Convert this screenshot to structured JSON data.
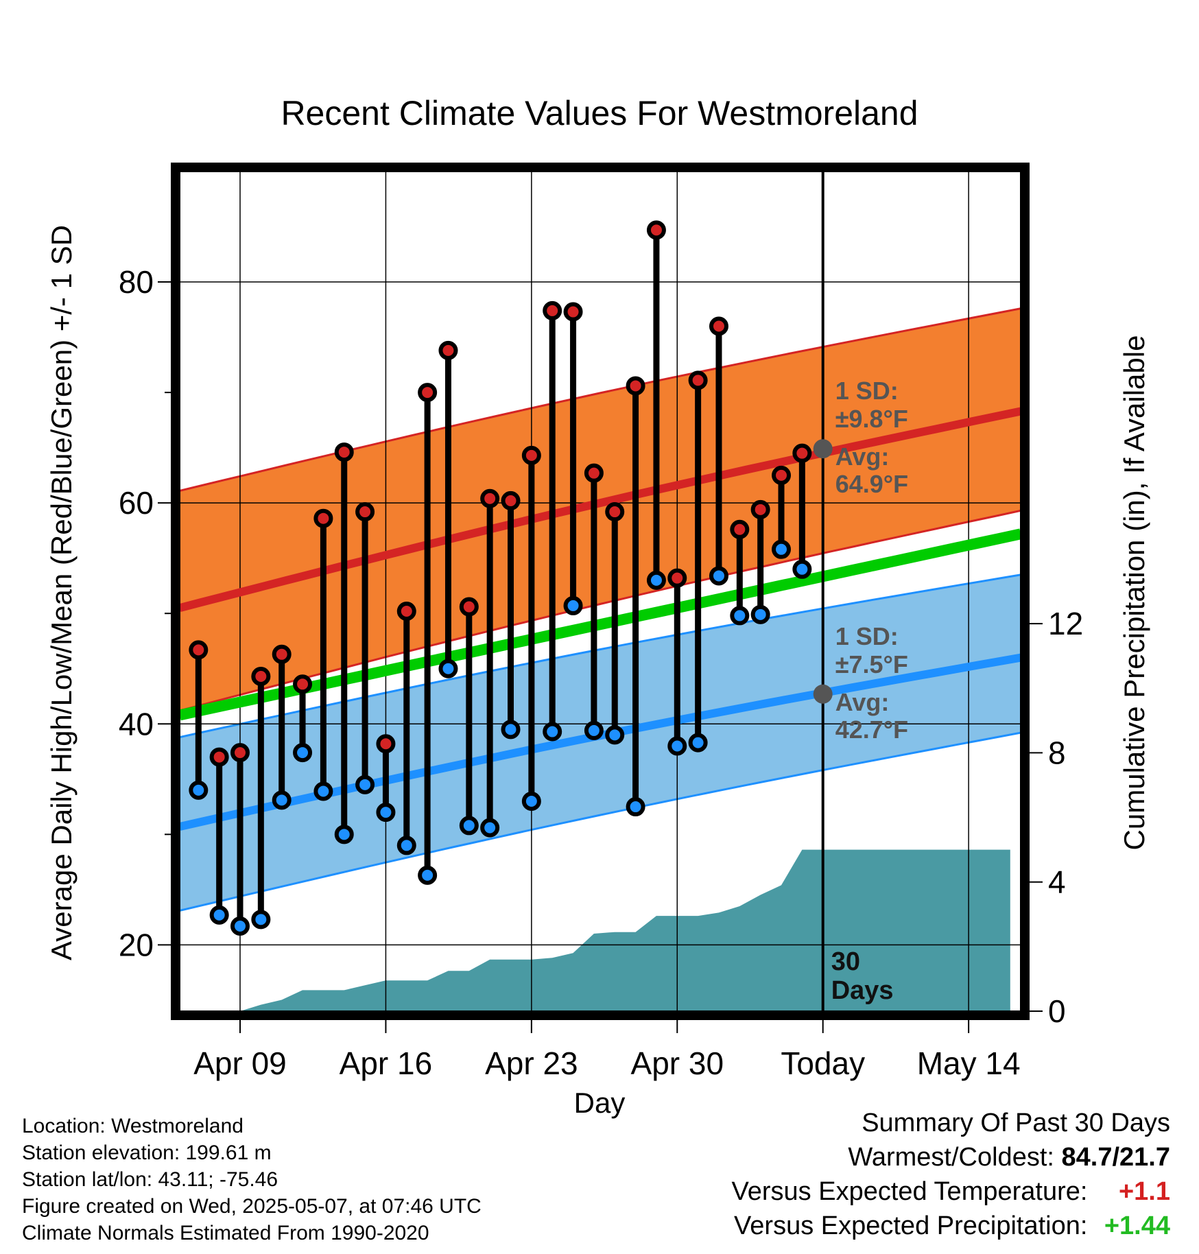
{
  "chart_data": {
    "type": "line",
    "title": "Recent Climate Values For Westmoreland",
    "xlabel": "Day",
    "ylabel": "Average Daily High/Low/Mean (Red/Blue/Green) +/- 1 SD",
    "y2label": "Cumulative Precipitation (in), If Available",
    "ylim": [
      14,
      90
    ],
    "y2lim": [
      0,
      26
    ],
    "x_tick_labels": [
      "Apr 09",
      "Apr 16",
      "Apr 23",
      "Apr 30",
      "Today",
      "May 14"
    ],
    "y_ticks": [
      "20",
      "40",
      "60",
      "80"
    ],
    "y2_ticks": [
      "0",
      "4",
      "8",
      "12"
    ],
    "today_day": 37,
    "today_marker_label_line1": "30",
    "today_marker_label_line2": "Days",
    "normals": {
      "high_mean_start": 50.5,
      "high_mean_end": 68.3,
      "high_sd_lower_start": 41.2,
      "high_sd_lower_end": 59.3,
      "high_sd_upper_start": 61.1,
      "high_sd_upper_end": 77.6,
      "low_mean_start": 30.7,
      "low_mean_end": 46.0,
      "low_sd_lower_start": 23.1,
      "low_sd_lower_end": 39.2,
      "low_sd_upper_start": 38.8,
      "low_sd_upper_end": 53.5,
      "mean_start": 40.8,
      "mean_end": 57.2
    },
    "annotations": {
      "high_sd_line1": "1 SD:",
      "high_sd_line2": "±9.8°F",
      "high_avg_line1": "Avg:",
      "high_avg_line2": "64.9°F",
      "high_avg_value": 64.9,
      "low_sd_line1": "1 SD:",
      "low_sd_line2": "±7.5°F",
      "low_avg_line1": "Avg:",
      "low_avg_line2": "42.7°F",
      "low_avg_value": 42.7
    },
    "daily": [
      {
        "day": 7,
        "high": 46.7,
        "low": 34.0
      },
      {
        "day": 8,
        "high": 37.0,
        "low": 22.7
      },
      {
        "day": 9,
        "high": 37.4,
        "low": 21.7
      },
      {
        "day": 10,
        "high": 44.3,
        "low": 22.3
      },
      {
        "day": 11,
        "high": 46.3,
        "low": 33.1
      },
      {
        "day": 12,
        "high": 43.6,
        "low": 37.4
      },
      {
        "day": 13,
        "high": 58.6,
        "low": 33.9
      },
      {
        "day": 14,
        "high": 64.6,
        "low": 30.0
      },
      {
        "day": 15,
        "high": 59.2,
        "low": 34.5
      },
      {
        "day": 16,
        "high": 38.2,
        "low": 32.0
      },
      {
        "day": 17,
        "high": 50.2,
        "low": 29.0
      },
      {
        "day": 18,
        "high": 70.0,
        "low": 26.3
      },
      {
        "day": 19,
        "high": 73.8,
        "low": 45.0
      },
      {
        "day": 20,
        "high": 50.6,
        "low": 30.8
      },
      {
        "day": 21,
        "high": 60.4,
        "low": 30.6
      },
      {
        "day": 22,
        "high": 60.2,
        "low": 39.5
      },
      {
        "day": 23,
        "high": 64.3,
        "low": 33.0
      },
      {
        "day": 24,
        "high": 77.4,
        "low": 39.3
      },
      {
        "day": 25,
        "high": 77.3,
        "low": 50.7
      },
      {
        "day": 26,
        "high": 62.7,
        "low": 39.4
      },
      {
        "day": 27,
        "high": 59.2,
        "low": 39.0
      },
      {
        "day": 28,
        "high": 70.6,
        "low": 32.5
      },
      {
        "day": 29,
        "high": 84.7,
        "low": 53.0
      },
      {
        "day": 30,
        "high": 53.2,
        "low": 38.0
      },
      {
        "day": 31,
        "high": 71.1,
        "low": 38.3
      },
      {
        "day": 32,
        "high": 76.0,
        "low": 53.4
      },
      {
        "day": 33,
        "high": 57.6,
        "low": 49.8
      },
      {
        "day": 34,
        "high": 59.4,
        "low": 49.9
      },
      {
        "day": 35,
        "high": 62.5,
        "low": 55.8
      },
      {
        "day": 36,
        "high": 64.5,
        "low": 54.0
      }
    ],
    "precip_cumulative": [
      {
        "day": 9,
        "value": 0.0
      },
      {
        "day": 10,
        "value": 0.2
      },
      {
        "day": 11,
        "value": 0.35
      },
      {
        "day": 12,
        "value": 0.65
      },
      {
        "day": 13,
        "value": 0.65
      },
      {
        "day": 14,
        "value": 0.65
      },
      {
        "day": 15,
        "value": 0.8
      },
      {
        "day": 16,
        "value": 0.95
      },
      {
        "day": 17,
        "value": 0.95
      },
      {
        "day": 18,
        "value": 0.95
      },
      {
        "day": 19,
        "value": 1.25
      },
      {
        "day": 20,
        "value": 1.25
      },
      {
        "day": 21,
        "value": 1.6
      },
      {
        "day": 22,
        "value": 1.6
      },
      {
        "day": 23,
        "value": 1.6
      },
      {
        "day": 24,
        "value": 1.65
      },
      {
        "day": 25,
        "value": 1.8
      },
      {
        "day": 26,
        "value": 2.4
      },
      {
        "day": 27,
        "value": 2.45
      },
      {
        "day": 28,
        "value": 2.45
      },
      {
        "day": 29,
        "value": 2.95
      },
      {
        "day": 30,
        "value": 2.95
      },
      {
        "day": 31,
        "value": 2.95
      },
      {
        "day": 32,
        "value": 3.05
      },
      {
        "day": 33,
        "value": 3.25
      },
      {
        "day": 34,
        "value": 3.6
      },
      {
        "day": 35,
        "value": 3.9
      },
      {
        "day": 36,
        "value": 5.0
      },
      {
        "day": 37,
        "value": 5.0
      },
      {
        "day": 46,
        "value": 5.0
      }
    ]
  },
  "metadata": {
    "location": "Location: Westmoreland",
    "elevation": "Station elevation: 199.61 m",
    "latlon": "Station lat/lon: 43.11; -75.46",
    "created": "Figure created on Wed, 2025-05-07, at 07:46 UTC",
    "normals": "Climate Normals Estimated From 1990-2020"
  },
  "summary": {
    "title": "Summary Of Past 30 Days",
    "warmest_label": "Warmest/Coldest:",
    "warmest_value": "84.7/21.7",
    "temp_label": "Versus Expected Temperature:",
    "temp_value": "+1.1",
    "precip_label": "Versus Expected Precipitation:",
    "precip_value": "+1.44"
  },
  "colors": {
    "high": "#d42424",
    "low": "#1e90ff",
    "mean": "#00cc00",
    "high_band": "#f37f2f",
    "low_band": "#85c1e9",
    "precip": "#4a9aa3",
    "annotation": "#555555"
  }
}
